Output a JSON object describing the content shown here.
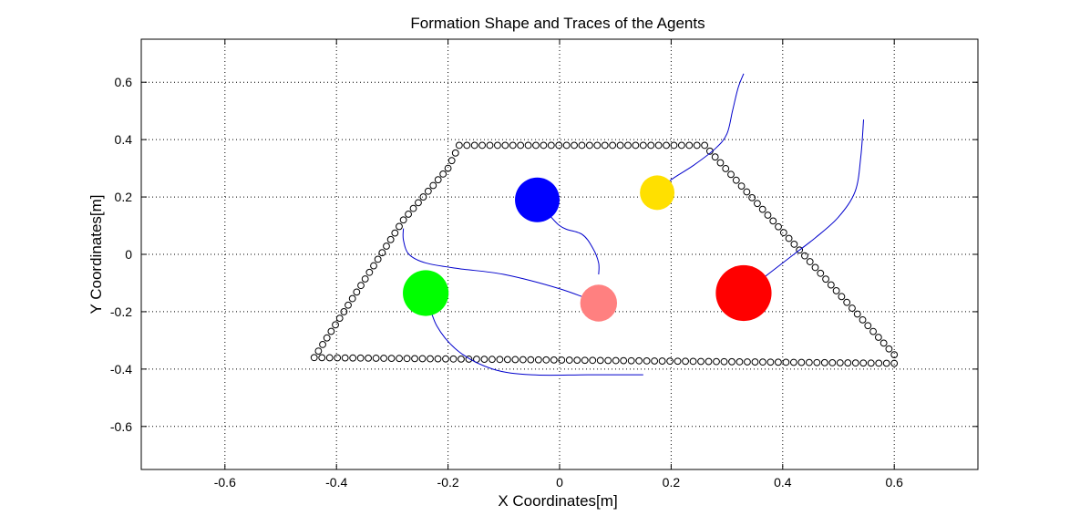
{
  "chart_data": {
    "type": "scatter",
    "title": "Formation Shape and Traces of the Agents",
    "xlabel": "X Coordinates[m]",
    "ylabel": "Y Coordinates[m]",
    "xlim": [
      -0.75,
      0.75
    ],
    "ylim": [
      -0.75,
      0.75
    ],
    "xticks": [
      -0.6,
      -0.4,
      -0.2,
      0,
      0.2,
      0.4,
      0.6
    ],
    "yticks": [
      -0.6,
      -0.4,
      -0.2,
      0,
      0.2,
      0.4,
      0.6
    ],
    "xtick_labels": [
      "-0.6",
      "-0.4",
      "-0.2",
      "0",
      "0.2",
      "0.4",
      "0.6"
    ],
    "ytick_labels": [
      "-0.6",
      "-0.4",
      "-0.2",
      "0",
      "0.2",
      "0.4",
      "0.6"
    ],
    "grid": true,
    "formation_shape": {
      "marker": "open-circle",
      "color": "#000000",
      "vertices": [
        [
          -0.44,
          -0.36
        ],
        [
          -0.28,
          0.12
        ],
        [
          -0.2,
          0.3
        ],
        [
          -0.18,
          0.38
        ],
        [
          0.26,
          0.38
        ],
        [
          0.6,
          -0.35
        ],
        [
          0.6,
          -0.38
        ],
        [
          -0.44,
          -0.36
        ]
      ]
    },
    "agents": [
      {
        "color": "#0000ff",
        "position": [
          -0.04,
          0.19
        ],
        "radius": 0.04,
        "trace": [
          [
            -0.04,
            0.19
          ],
          [
            0.0,
            0.1
          ],
          [
            0.04,
            0.07
          ],
          [
            0.06,
            0.02
          ],
          [
            0.07,
            -0.03
          ],
          [
            0.07,
            -0.07
          ]
        ]
      },
      {
        "color": "#ffe000",
        "position": [
          0.175,
          0.215
        ],
        "radius": 0.031,
        "trace": [
          [
            0.175,
            0.215
          ],
          [
            0.2,
            0.26
          ],
          [
            0.24,
            0.31
          ],
          [
            0.28,
            0.37
          ],
          [
            0.3,
            0.42
          ],
          [
            0.31,
            0.5
          ],
          [
            0.32,
            0.58
          ],
          [
            0.33,
            0.63
          ]
        ]
      },
      {
        "color": "#00ff00",
        "position": [
          -0.24,
          -0.135
        ],
        "radius": 0.041,
        "trace": [
          [
            -0.24,
            -0.135
          ],
          [
            -0.22,
            -0.25
          ],
          [
            -0.18,
            -0.34
          ],
          [
            -0.12,
            -0.4
          ],
          [
            -0.05,
            -0.42
          ],
          [
            0.05,
            -0.42
          ],
          [
            0.15,
            -0.42
          ]
        ]
      },
      {
        "color": "#ff8080",
        "position": [
          0.07,
          -0.17
        ],
        "radius": 0.033,
        "trace": [
          [
            0.07,
            -0.17
          ],
          [
            0.0,
            -0.12
          ],
          [
            -0.1,
            -0.07
          ],
          [
            -0.18,
            -0.05
          ],
          [
            -0.24,
            -0.03
          ],
          [
            -0.27,
            0.0
          ],
          [
            -0.28,
            0.05
          ],
          [
            -0.28,
            0.09
          ]
        ]
      },
      {
        "color": "#ff0000",
        "position": [
          0.33,
          -0.135
        ],
        "radius": 0.05,
        "trace": [
          [
            0.33,
            -0.135
          ],
          [
            0.38,
            -0.06
          ],
          [
            0.42,
            0.0
          ],
          [
            0.46,
            0.06
          ],
          [
            0.5,
            0.13
          ],
          [
            0.53,
            0.22
          ],
          [
            0.54,
            0.34
          ],
          [
            0.545,
            0.47
          ]
        ]
      }
    ],
    "trace_color": "#0000cc"
  }
}
